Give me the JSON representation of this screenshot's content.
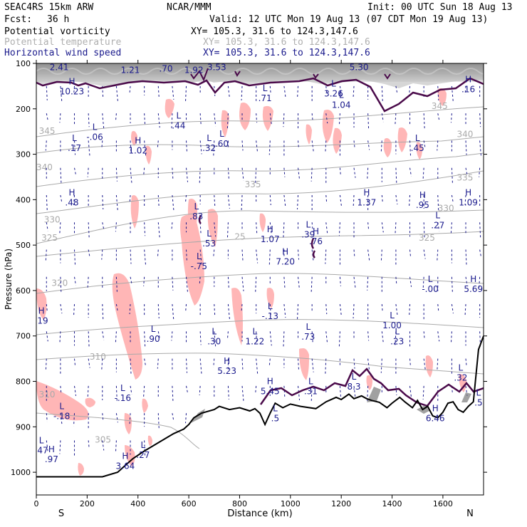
{
  "header": {
    "model": "SEAC4RS 15km ARW",
    "org": "NCAR/MMM",
    "init": "Init: 00 UTC Sun 18 Aug 13",
    "fcst_label": "Fcst:",
    "fcst_value": "36 h",
    "valid": "Valid: 12 UTC Mon 19 Aug 13 (07 CDT Mon 19 Aug 13)",
    "fields": [
      {
        "name": "Potential vorticity",
        "xy": "XY= 105.3, 31.6 to 124.3,147.6"
      },
      {
        "name": "Potential temperature",
        "xy": "XY= 105.3, 31.6 to 124.3,147.6"
      },
      {
        "name": "Horizontal wind speed",
        "xy": "XY= 105.3, 31.6 to 124.3,147.6"
      }
    ]
  },
  "colors": {
    "pv_contour": "#4a0a4a",
    "theta": "#aaaaaa",
    "wind": "#1a1a8c",
    "pv_fill": "#ffb6b6",
    "terrain": "#000000"
  },
  "chart_data": {
    "type": "contour-cross-section",
    "xlabel": "Distance (km)",
    "ylabel": "Pressure (hPa)",
    "xlim": [
      0,
      1760
    ],
    "ylim": [
      1050,
      100
    ],
    "xticks": [
      0,
      200,
      400,
      600,
      800,
      1000,
      1200,
      1400,
      1600
    ],
    "yticks": [
      100,
      200,
      300,
      400,
      500,
      600,
      700,
      800,
      900,
      1000
    ],
    "end_labels": {
      "left": "S",
      "right": "N"
    },
    "terrain": {
      "x": [
        0,
        100,
        180,
        260,
        320,
        350,
        380,
        420,
        480,
        540,
        580,
        600,
        620,
        650,
        700,
        720,
        760,
        800,
        840,
        860,
        880,
        900,
        920,
        940,
        970,
        1000,
        1040,
        1100,
        1140,
        1180,
        1200,
        1230,
        1250,
        1280,
        1300,
        1320,
        1350,
        1380,
        1400,
        1430,
        1450,
        1480,
        1500,
        1520,
        1540,
        1560,
        1580,
        1600,
        1620,
        1640,
        1660,
        1680,
        1700,
        1720,
        1740,
        1760
      ],
      "p": [
        1010,
        1010,
        1010,
        1010,
        1000,
        985,
        970,
        955,
        935,
        915,
        905,
        895,
        880,
        870,
        862,
        855,
        862,
        858,
        865,
        860,
        870,
        895,
        870,
        848,
        858,
        850,
        855,
        860,
        845,
        835,
        840,
        828,
        838,
        832,
        838,
        842,
        846,
        858,
        848,
        835,
        845,
        858,
        842,
        862,
        855,
        876,
        880,
        868,
        848,
        845,
        862,
        868,
        855,
        845,
        730,
        700
      ]
    },
    "theta_labels": [
      {
        "v": "345",
        "x": 10,
        "p": 255
      },
      {
        "v": "340",
        "x": 0,
        "p": 335
      },
      {
        "v": "335",
        "x": 820,
        "p": 373
      },
      {
        "v": "330",
        "x": 30,
        "p": 450
      },
      {
        "v": "325",
        "x": 20,
        "p": 490
      },
      {
        "v": "320",
        "x": 60,
        "p": 590
      },
      {
        "v": "310",
        "x": 210,
        "p": 752
      },
      {
        "v": "305",
        "x": 230,
        "p": 935
      },
      {
        "v": "345",
        "x": 1555,
        "p": 200
      },
      {
        "v": "340",
        "x": 1655,
        "p": 262
      },
      {
        "v": "335",
        "x": 1655,
        "p": 358
      },
      {
        "v": "330",
        "x": 1580,
        "p": 425
      },
      {
        "v": "325",
        "x": 1505,
        "p": 490
      },
      {
        "v": "25",
        "x": 780,
        "p": 488
      },
      {
        "v": "310",
        "x": 10,
        "p": 835
      }
    ],
    "extrema": [
      {
        "t": "H",
        "v": "10.23",
        "x": 140,
        "p": 165
      },
      {
        "t": "L",
        "v": "-.06",
        "x": 230,
        "p": 265
      },
      {
        "t": "L",
        "v": ".17",
        "x": 150,
        "p": 290
      },
      {
        "t": "H",
        "v": "1.02",
        "x": 400,
        "p": 295
      },
      {
        "t": "L",
        "v": ".44",
        "x": 560,
        "p": 240
      },
      {
        "t": "L",
        "v": ".32",
        "x": 680,
        "p": 290
      },
      {
        "t": "L",
        "v": ".60",
        "x": 730,
        "p": 280
      },
      {
        "t": "H",
        "v": ".48",
        "x": 140,
        "p": 410
      },
      {
        "t": "L",
        "v": ".71",
        "x": 900,
        "p": 180
      },
      {
        "t": "L",
        "v": "3.26",
        "x": 1170,
        "p": 170
      },
      {
        "t": "L",
        "v": "1.04",
        "x": 1200,
        "p": 195
      },
      {
        "t": "H",
        "v": ".16",
        "x": 1700,
        "p": 160
      },
      {
        "t": "L",
        "v": ".45",
        "x": 1500,
        "p": 290
      },
      {
        "t": "H",
        "v": "1.37",
        "x": 1300,
        "p": 410
      },
      {
        "t": "H",
        "v": ".95",
        "x": 1520,
        "p": 415
      },
      {
        "t": "H",
        "v": "1.09",
        "x": 1700,
        "p": 410
      },
      {
        "t": "L",
        "v": ".27",
        "x": 1580,
        "p": 460
      },
      {
        "t": "L",
        "v": ".83",
        "x": 630,
        "p": 440
      },
      {
        "t": "L",
        "v": ".53",
        "x": 680,
        "p": 500
      },
      {
        "t": "L",
        "v": "-.75",
        "x": 640,
        "p": 550
      },
      {
        "t": "H",
        "v": "1.07",
        "x": 920,
        "p": 490
      },
      {
        "t": "L",
        "v": ".39",
        "x": 1070,
        "p": 480
      },
      {
        "t": "H",
        "v": ".76",
        "x": 1100,
        "p": 495
      },
      {
        "t": "H",
        "v": "7.20",
        "x": 980,
        "p": 540
      },
      {
        "t": "L",
        "v": "-.00",
        "x": 1550,
        "p": 600
      },
      {
        "t": "H",
        "v": "5.69",
        "x": 1720,
        "p": 600
      },
      {
        "t": "L",
        "v": "-.13",
        "x": 920,
        "p": 660
      },
      {
        "t": "L",
        "v": "1.00",
        "x": 1400,
        "p": 680
      },
      {
        "t": "L",
        "v": ".73",
        "x": 1070,
        "p": 705
      },
      {
        "t": "L",
        "v": ".23",
        "x": 1420,
        "p": 715
      },
      {
        "t": "L",
        "v": ".90",
        "x": 460,
        "p": 710
      },
      {
        "t": "L",
        "v": ".30",
        "x": 700,
        "p": 715
      },
      {
        "t": "L",
        "v": "1.22",
        "x": 860,
        "p": 715
      },
      {
        "t": "H",
        "v": "5.23",
        "x": 750,
        "p": 780
      },
      {
        "t": "H",
        "v": "5.45",
        "x": 920,
        "p": 825
      },
      {
        "t": "L",
        "v": ".31",
        "x": 1080,
        "p": 825
      },
      {
        "t": "L",
        "v": "8.3",
        "x": 1250,
        "p": 815
      },
      {
        "t": "L",
        "v": ".32",
        "x": 1670,
        "p": 795
      },
      {
        "t": "L",
        "v": ".5",
        "x": 1740,
        "p": 850
      },
      {
        "t": "L",
        "v": "-.16",
        "x": 340,
        "p": 840
      },
      {
        "t": "L",
        "v": "-.18",
        "x": 100,
        "p": 880
      },
      {
        "t": "L",
        "v": ".5",
        "x": 940,
        "p": 885
      },
      {
        "t": "H",
        "v": "6.46",
        "x": 1570,
        "p": 885
      },
      {
        "t": "L",
        "v": ".27",
        "x": 420,
        "p": 965
      },
      {
        "t": "L",
        "v": ".47",
        "x": 20,
        "p": 955
      },
      {
        "t": "H",
        "v": ".97",
        "x": 60,
        "p": 975
      },
      {
        "t": "H",
        "v": "3.64",
        "x": 350,
        "p": 990
      },
      {
        "t": "H",
        "v": ".19",
        "x": 20,
        "p": 670
      },
      {
        "t": "H",
        "v": "2.41",
        "x": 90,
        "p": 112
      },
      {
        "t": "H",
        "v": "1.21",
        "x": 370,
        "p": 118
      },
      {
        "t": "L",
        "v": ".70",
        "x": 510,
        "p": 115
      },
      {
        "t": "H",
        "v": "1.92",
        "x": 620,
        "p": 118
      },
      {
        "t": "H",
        "v": "3.53",
        "x": 710,
        "p": 112
      },
      {
        "t": "H",
        "v": "5.30",
        "x": 1270,
        "p": 112
      }
    ]
  }
}
